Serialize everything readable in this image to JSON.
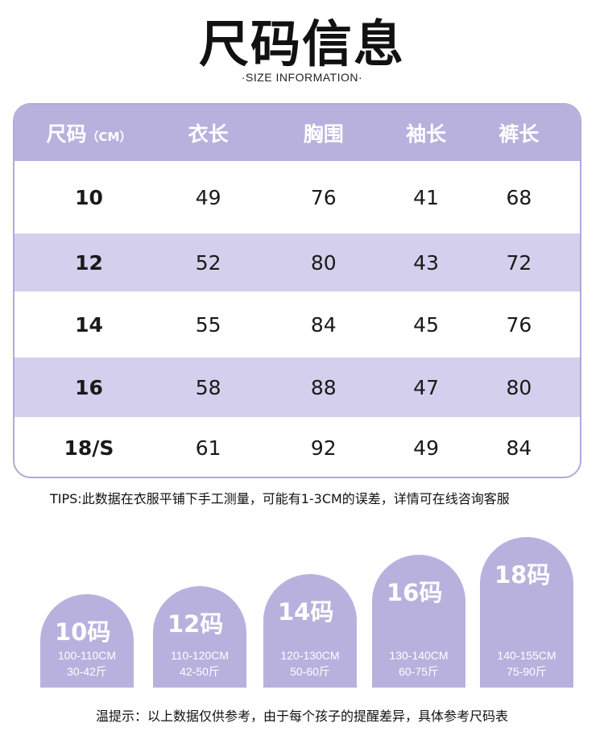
{
  "header": {
    "title": "尺码信息",
    "subtitle": "·SIZE INFORMATION·"
  },
  "table": {
    "headers": {
      "size": "尺码",
      "unit": "（CM）",
      "length": "衣长",
      "chest": "胸围",
      "sleeve": "袖长",
      "pants": "裤长"
    },
    "rows": [
      {
        "size": "10",
        "length": "49",
        "chest": "76",
        "sleeve": "41",
        "pants": "68"
      },
      {
        "size": "12",
        "length": "52",
        "chest": "80",
        "sleeve": "43",
        "pants": "72"
      },
      {
        "size": "14",
        "length": "55",
        "chest": "84",
        "sleeve": "45",
        "pants": "76"
      },
      {
        "size": "16",
        "length": "58",
        "chest": "88",
        "sleeve": "47",
        "pants": "80"
      },
      {
        "size": "18/S",
        "length": "61",
        "chest": "92",
        "sleeve": "49",
        "pants": "84"
      }
    ]
  },
  "tips": "TIPS:此数据在衣服平铺下手工测量，可能有1-3CM的误差，详情可在线咨询客服",
  "size_guide": [
    {
      "label": "10码",
      "height": "100-110CM",
      "weight": "30-42斤"
    },
    {
      "label": "12码",
      "height": "110-120CM",
      "weight": "42-50斤"
    },
    {
      "label": "14码",
      "height": "120-130CM",
      "weight": "50-60斤"
    },
    {
      "label": "16码",
      "height": "130-140CM",
      "weight": "60-75斤"
    },
    {
      "label": "18码",
      "height": "140-155CM",
      "weight": "75-90斤"
    }
  ],
  "footer": "温提示：以上数据仅供参考，由于每个孩子的提醒差异，具体参考尺码表",
  "colors": {
    "accent": "#b9b1dd",
    "row_alt": "#d4cfec",
    "border": "#b3a9d8"
  }
}
